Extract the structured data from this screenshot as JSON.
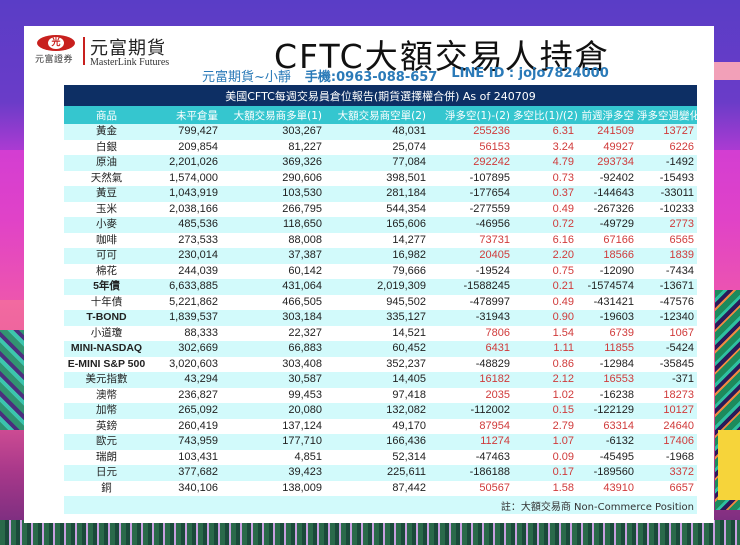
{
  "header": {
    "logo_mark": "光",
    "logo_sub": "元富證券",
    "logo_cn": "元富期貨",
    "logo_en": "MasterLink Futures",
    "title": "CFTC大額交易人持倉",
    "contact_name": "元富期貨~小靜",
    "contact_phone": "手機:0963-088-657",
    "contact_line": "LINE ID : jojo7824000"
  },
  "table": {
    "caption": "美國CFTC每週交易員倉位報告(期貨選擇權合併) As of  240709",
    "columns": [
      "商品",
      "未平倉量",
      "大額交易商多單(1)",
      "大額交易商空單(2)",
      "淨多空(1)-(2)",
      "多空比(1)/(2)",
      "前週淨多空",
      "淨多空週變化"
    ],
    "rows": [
      {
        "name": "黃金",
        "bold": false,
        "oi": "799,427",
        "long": "303,267",
        "short": "48,031",
        "net": "255236",
        "ratio": "6.31",
        "prev": "241509",
        "chg": "13727"
      },
      {
        "name": "白銀",
        "bold": false,
        "oi": "209,854",
        "long": "81,227",
        "short": "25,074",
        "net": "56153",
        "ratio": "3.24",
        "prev": "49927",
        "chg": "6226"
      },
      {
        "name": "原油",
        "bold": false,
        "oi": "2,201,026",
        "long": "369,326",
        "short": "77,084",
        "net": "292242",
        "ratio": "4.79",
        "prev": "293734",
        "chg": "-1492"
      },
      {
        "name": "天然氣",
        "bold": false,
        "oi": "1,574,000",
        "long": "290,606",
        "short": "398,501",
        "net": "-107895",
        "ratio": "0.73",
        "prev": "-92402",
        "chg": "-15493"
      },
      {
        "name": "黃豆",
        "bold": false,
        "oi": "1,043,919",
        "long": "103,530",
        "short": "281,184",
        "net": "-177654",
        "ratio": "0.37",
        "prev": "-144643",
        "chg": "-33011"
      },
      {
        "name": "玉米",
        "bold": false,
        "oi": "2,038,166",
        "long": "266,795",
        "short": "544,354",
        "net": "-277559",
        "ratio": "0.49",
        "prev": "-267326",
        "chg": "-10233"
      },
      {
        "name": "小麥",
        "bold": false,
        "oi": "485,536",
        "long": "118,650",
        "short": "165,606",
        "net": "-46956",
        "ratio": "0.72",
        "prev": "-49729",
        "chg": "2773"
      },
      {
        "name": "咖啡",
        "bold": false,
        "oi": "273,533",
        "long": "88,008",
        "short": "14,277",
        "net": "73731",
        "ratio": "6.16",
        "prev": "67166",
        "chg": "6565"
      },
      {
        "name": "可可",
        "bold": false,
        "oi": "230,014",
        "long": "37,387",
        "short": "16,982",
        "net": "20405",
        "ratio": "2.20",
        "prev": "18566",
        "chg": "1839"
      },
      {
        "name": "棉花",
        "bold": false,
        "oi": "244,039",
        "long": "60,142",
        "short": "79,666",
        "net": "-19524",
        "ratio": "0.75",
        "prev": "-12090",
        "chg": "-7434"
      },
      {
        "name": "5年債",
        "bold": true,
        "oi": "6,633,885",
        "long": "431,064",
        "short": "2,019,309",
        "net": "-1588245",
        "ratio": "0.21",
        "prev": "-1574574",
        "chg": "-13671"
      },
      {
        "name": "十年債",
        "bold": false,
        "oi": "5,221,862",
        "long": "466,505",
        "short": "945,502",
        "net": "-478997",
        "ratio": "0.49",
        "prev": "-431421",
        "chg": "-47576"
      },
      {
        "name": "T-BOND",
        "bold": true,
        "oi": "1,839,537",
        "long": "303,184",
        "short": "335,127",
        "net": "-31943",
        "ratio": "0.90",
        "prev": "-19603",
        "chg": "-12340"
      },
      {
        "name": "小道瓊",
        "bold": false,
        "oi": "88,333",
        "long": "22,327",
        "short": "14,521",
        "net": "7806",
        "ratio": "1.54",
        "prev": "6739",
        "chg": "1067"
      },
      {
        "name": "MINI-NASDAQ",
        "bold": true,
        "oi": "302,669",
        "long": "66,883",
        "short": "60,452",
        "net": "6431",
        "ratio": "1.11",
        "prev": "11855",
        "chg": "-5424"
      },
      {
        "name": "E-MINI S&P 500",
        "bold": true,
        "oi": "3,020,603",
        "long": "303,408",
        "short": "352,237",
        "net": "-48829",
        "ratio": "0.86",
        "prev": "-12984",
        "chg": "-35845"
      },
      {
        "name": "美元指數",
        "bold": false,
        "oi": "43,294",
        "long": "30,587",
        "short": "14,405",
        "net": "16182",
        "ratio": "2.12",
        "prev": "16553",
        "chg": "-371"
      },
      {
        "name": "澳幣",
        "bold": false,
        "oi": "236,827",
        "long": "99,453",
        "short": "97,418",
        "net": "2035",
        "ratio": "1.02",
        "prev": "-16238",
        "chg": "18273"
      },
      {
        "name": "加幣",
        "bold": false,
        "oi": "265,092",
        "long": "20,080",
        "short": "132,082",
        "net": "-112002",
        "ratio": "0.15",
        "prev": "-122129",
        "chg": "10127"
      },
      {
        "name": "英鎊",
        "bold": false,
        "oi": "260,419",
        "long": "137,124",
        "short": "49,170",
        "net": "87954",
        "ratio": "2.79",
        "prev": "63314",
        "chg": "24640"
      },
      {
        "name": "歐元",
        "bold": false,
        "oi": "743,959",
        "long": "177,710",
        "short": "166,436",
        "net": "11274",
        "ratio": "1.07",
        "prev": "-6132",
        "chg": "17406"
      },
      {
        "name": "瑞朗",
        "bold": false,
        "oi": "103,431",
        "long": "4,851",
        "short": "52,314",
        "net": "-47463",
        "ratio": "0.09",
        "prev": "-45495",
        "chg": "-1968"
      },
      {
        "name": "日元",
        "bold": false,
        "oi": "377,682",
        "long": "39,423",
        "short": "225,611",
        "net": "-186188",
        "ratio": "0.17",
        "prev": "-189560",
        "chg": "3372"
      },
      {
        "name": "銅",
        "bold": false,
        "oi": "340,106",
        "long": "138,009",
        "short": "87,442",
        "net": "50567",
        "ratio": "1.58",
        "prev": "43910",
        "chg": "6657"
      }
    ],
    "note": "註：大額交易商 Non-Commerce Position"
  },
  "colors": {
    "caption_bg": "#0d2f64",
    "header_bg": "#35c6cf",
    "stripe": "#d2fafb",
    "positive": "#d03a3a",
    "negative": "#222222",
    "brand_red": "#c8201e",
    "contact_blue": "#2a7ab8"
  }
}
